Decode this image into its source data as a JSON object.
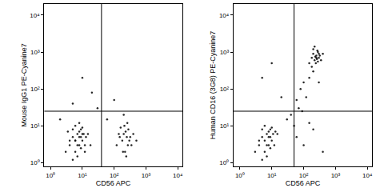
{
  "chart_data": [
    {
      "type": "scatter",
      "x_label": "CD56 APC",
      "y_label": "Mouse IgG1 PE-Cyanine7",
      "log": true,
      "grid": false,
      "color": "#000000",
      "marker": "dot",
      "xlim": [
        0.63,
        14000
      ],
      "ylim": [
        0.8,
        20000
      ],
      "xticks": [
        {
          "value": 1,
          "label": "10⁰"
        },
        {
          "value": 10,
          "label": "10¹"
        },
        {
          "value": 100,
          "label": "10²"
        },
        {
          "value": 1000,
          "label": "10³"
        },
        {
          "value": 10000,
          "label": "10⁴"
        }
      ],
      "yticks": [
        {
          "value": 1,
          "label": "10⁰"
        },
        {
          "value": 10,
          "label": "10¹"
        },
        {
          "value": 100,
          "label": "10²"
        },
        {
          "value": 1000,
          "label": "10³"
        },
        {
          "value": 10000,
          "label": "10⁴"
        }
      ],
      "gates": {
        "x": 40,
        "y": 25
      },
      "x": [
        3,
        4,
        5,
        6,
        7,
        8,
        9,
        10,
        12,
        15,
        5,
        6,
        8,
        10,
        4,
        7,
        9,
        11,
        6,
        8,
        13,
        3.5,
        5,
        7,
        9,
        12,
        6,
        8,
        10,
        18,
        120,
        150,
        180,
        200,
        220,
        250,
        280,
        300,
        350,
        400,
        160,
        190,
        230,
        270,
        320,
        210,
        240,
        500,
        140,
        260,
        5,
        20,
        10,
        100,
        60,
        30,
        2,
        200
      ],
      "values": [
        2,
        3,
        5,
        4,
        6,
        3,
        5,
        4,
        3,
        6,
        8,
        2,
        7,
        9,
        4,
        1.5,
        2.5,
        6,
        10,
        12,
        5,
        7,
        1.2,
        3,
        8,
        2,
        4,
        5,
        6,
        3,
        3,
        5,
        4,
        6,
        2,
        5,
        8,
        4,
        3,
        6,
        9,
        2,
        7,
        3,
        5,
        10,
        1.5,
        4,
        6,
        12,
        40,
        80,
        200,
        50,
        15,
        30,
        15,
        20
      ]
    },
    {
      "type": "scatter",
      "x_label": "CD56 APC",
      "y_label": "Human CD16 (3G8) PE-Cyanine7",
      "log": true,
      "grid": false,
      "color": "#000000",
      "marker": "dot",
      "xlim": [
        0.63,
        14000
      ],
      "ylim": [
        0.8,
        20000
      ],
      "xticks": [
        {
          "value": 1,
          "label": "10⁰"
        },
        {
          "value": 10,
          "label": "10¹"
        },
        {
          "value": 100,
          "label": "10²"
        },
        {
          "value": 1000,
          "label": "10³"
        },
        {
          "value": 10000,
          "label": "10⁴"
        }
      ],
      "yticks": [
        {
          "value": 1,
          "label": "10⁰"
        },
        {
          "value": 10,
          "label": "10¹"
        },
        {
          "value": 100,
          "label": "10²"
        },
        {
          "value": 1000,
          "label": "10³"
        },
        {
          "value": 10000,
          "label": "10⁴"
        }
      ],
      "gates": {
        "x": 50,
        "y": 25
      },
      "x": [
        3,
        4,
        5,
        6,
        7,
        8,
        9,
        10,
        12,
        15,
        5,
        6,
        8,
        10,
        4,
        7,
        9,
        11,
        6,
        8,
        13,
        5,
        7,
        9,
        150,
        180,
        200,
        220,
        250,
        280,
        300,
        350,
        200,
        230,
        260,
        300,
        180,
        240,
        270,
        320,
        220,
        250,
        400,
        280,
        40,
        60,
        80,
        100,
        150,
        120,
        200,
        70,
        300,
        50,
        90,
        30,
        60,
        100,
        200,
        400,
        150,
        5,
        10,
        20
      ],
      "values": [
        2,
        3,
        5,
        4,
        6,
        3,
        5,
        4,
        3,
        6,
        8,
        2,
        7,
        9,
        4,
        1.5,
        2.5,
        6,
        10,
        5,
        7,
        1.2,
        3,
        8,
        500,
        700,
        900,
        600,
        800,
        1000,
        700,
        600,
        1200,
        750,
        650,
        900,
        400,
        500,
        1100,
        800,
        1400,
        700,
        900,
        550,
        20,
        50,
        100,
        150,
        200,
        60,
        300,
        30,
        150,
        10,
        25,
        15,
        5,
        3,
        8,
        2,
        12,
        200,
        500,
        60
      ]
    }
  ]
}
